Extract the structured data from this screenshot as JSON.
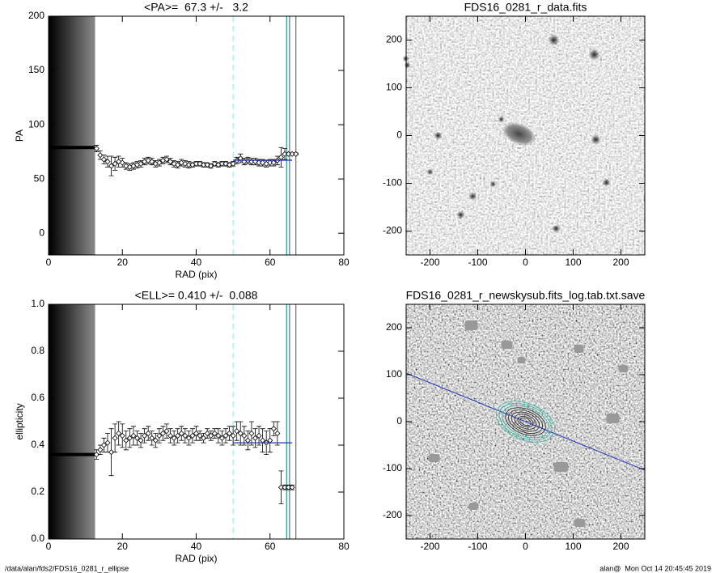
{
  "chart_data": [
    {
      "type": "scatter",
      "title": "<PA>=  67.3 +/-   3.2",
      "xlabel": "RAD (pix)",
      "ylabel": "PA",
      "xlim": [
        0,
        80
      ],
      "xticks": [
        0,
        20,
        40,
        60,
        80
      ],
      "ylim": [
        -20,
        200
      ],
      "yticks": [
        0,
        50,
        100,
        150,
        200
      ],
      "color": "#000000",
      "band": [
        0,
        12.5
      ],
      "inner_level": 79,
      "x": [
        13,
        14,
        15,
        16,
        17,
        18,
        19,
        20,
        21,
        22,
        23,
        24,
        25,
        26,
        27,
        28,
        29,
        30,
        31,
        32,
        33,
        34,
        35,
        36,
        37,
        38,
        39,
        40,
        41,
        42,
        43,
        44,
        45,
        46,
        47,
        48,
        49,
        50,
        51,
        52,
        53,
        54,
        55,
        56,
        57,
        58,
        59,
        60,
        61,
        62,
        63,
        64,
        65,
        66,
        67
      ],
      "values": [
        78,
        72,
        68,
        66,
        62,
        64,
        66,
        65,
        62,
        61,
        62,
        63,
        64,
        66,
        67,
        66,
        64,
        65,
        67,
        68,
        66,
        64,
        63,
        65,
        64,
        63,
        63,
        64,
        64,
        63,
        63,
        62,
        64,
        63,
        64,
        64,
        63,
        64,
        67,
        69,
        66,
        67,
        66,
        66,
        65,
        65,
        64,
        65,
        65,
        67,
        70,
        73,
        73,
        73,
        73
      ],
      "errors": [
        3,
        4,
        4,
        5,
        9,
        6,
        5,
        4,
        3,
        3,
        3,
        3,
        3,
        3,
        3,
        3,
        3,
        3,
        3,
        3,
        3,
        3,
        3,
        3,
        3,
        3,
        2,
        2,
        2,
        2,
        2,
        2,
        2,
        2,
        2,
        2,
        2,
        2,
        3,
        4,
        3,
        3,
        3,
        3,
        3,
        3,
        3,
        3,
        3,
        4,
        9,
        5,
        1,
        1,
        1
      ],
      "fit": {
        "x": [
          50,
          66
        ],
        "y": 67.3
      },
      "vlines": [
        {
          "x": 50,
          "color": "#99eeee",
          "dash": true
        },
        {
          "x": 64.5,
          "color": "#22aaaa"
        },
        {
          "x": 65.3,
          "color": "#777777"
        },
        {
          "x": 67,
          "color": "#777777"
        }
      ]
    },
    {
      "type": "image",
      "title": "FDS16_0281_r_data.fits",
      "xlim": [
        -250,
        250
      ],
      "xticks": [
        -200,
        -100,
        0,
        100,
        200
      ],
      "ylim": [
        -250,
        250
      ],
      "yticks": [
        -200,
        -100,
        0,
        100,
        200
      ]
    },
    {
      "type": "scatter",
      "title": "<ELL>= 0.410 +/-  0.088",
      "xlabel": "RAD (pix)",
      "ylabel": "ellipticity",
      "xlim": [
        0,
        80
      ],
      "xticks": [
        0,
        20,
        40,
        60,
        80
      ],
      "ylim": [
        0,
        1
      ],
      "yticks": [
        {
          "value": 0,
          "label": "0.0"
        },
        0.2,
        0.4,
        0.6,
        0.8,
        {
          "value": 1,
          "label": "1.0"
        }
      ],
      "color": "#000000",
      "band": [
        0,
        12.5
      ],
      "inner_level": 0.36,
      "x": [
        13,
        14,
        15,
        16,
        17,
        18,
        19,
        20,
        21,
        22,
        23,
        24,
        25,
        26,
        27,
        28,
        29,
        30,
        31,
        32,
        33,
        34,
        35,
        36,
        37,
        38,
        39,
        40,
        41,
        42,
        43,
        44,
        45,
        46,
        47,
        48,
        49,
        50,
        51,
        52,
        53,
        54,
        55,
        56,
        57,
        58,
        59,
        60,
        61,
        62,
        63,
        64,
        65,
        66
      ],
      "values": [
        0.36,
        0.38,
        0.4,
        0.41,
        0.37,
        0.43,
        0.45,
        0.44,
        0.42,
        0.43,
        0.44,
        0.43,
        0.42,
        0.44,
        0.45,
        0.43,
        0.42,
        0.44,
        0.45,
        0.46,
        0.44,
        0.43,
        0.44,
        0.45,
        0.44,
        0.43,
        0.44,
        0.45,
        0.44,
        0.43,
        0.45,
        0.44,
        0.45,
        0.44,
        0.43,
        0.44,
        0.45,
        0.44,
        0.46,
        0.45,
        0.44,
        0.42,
        0.45,
        0.43,
        0.44,
        0.42,
        0.41,
        0.42,
        0.47,
        0.45,
        0.22,
        0.22,
        0.22,
        0.22
      ],
      "errors": [
        0.02,
        0.02,
        0.03,
        0.04,
        0.1,
        0.06,
        0.05,
        0.05,
        0.04,
        0.04,
        0.04,
        0.03,
        0.03,
        0.03,
        0.03,
        0.03,
        0.03,
        0.03,
        0.03,
        0.03,
        0.03,
        0.03,
        0.03,
        0.03,
        0.03,
        0.03,
        0.03,
        0.03,
        0.02,
        0.02,
        0.02,
        0.02,
        0.02,
        0.03,
        0.03,
        0.03,
        0.03,
        0.04,
        0.04,
        0.05,
        0.04,
        0.04,
        0.05,
        0.04,
        0.04,
        0.05,
        0.05,
        0.05,
        0.03,
        0.05,
        0.07,
        0.01,
        0.01,
        0.01
      ],
      "fit": {
        "x": [
          50,
          66
        ],
        "y": 0.41
      },
      "vlines": [
        {
          "x": 50,
          "color": "#99eeee",
          "dash": true
        },
        {
          "x": 64.5,
          "color": "#22aaaa"
        },
        {
          "x": 65.3,
          "color": "#777777"
        },
        {
          "x": 67,
          "color": "#777777"
        }
      ]
    },
    {
      "type": "image",
      "title": "FDS16_0281_r_newskysub.fits_log.tab.txt.save",
      "xlim": [
        -250,
        250
      ],
      "xticks": [
        -200,
        -100,
        0,
        100,
        200
      ],
      "ylim": [
        -250,
        250
      ],
      "yticks": [
        -200,
        -100,
        0,
        100,
        200
      ]
    }
  ],
  "footer": {
    "left": "/data/alan/fds2/FDS16_0281_r_ellipse",
    "right": "alan@  Mon Oct 14 20:45:45 2019"
  }
}
